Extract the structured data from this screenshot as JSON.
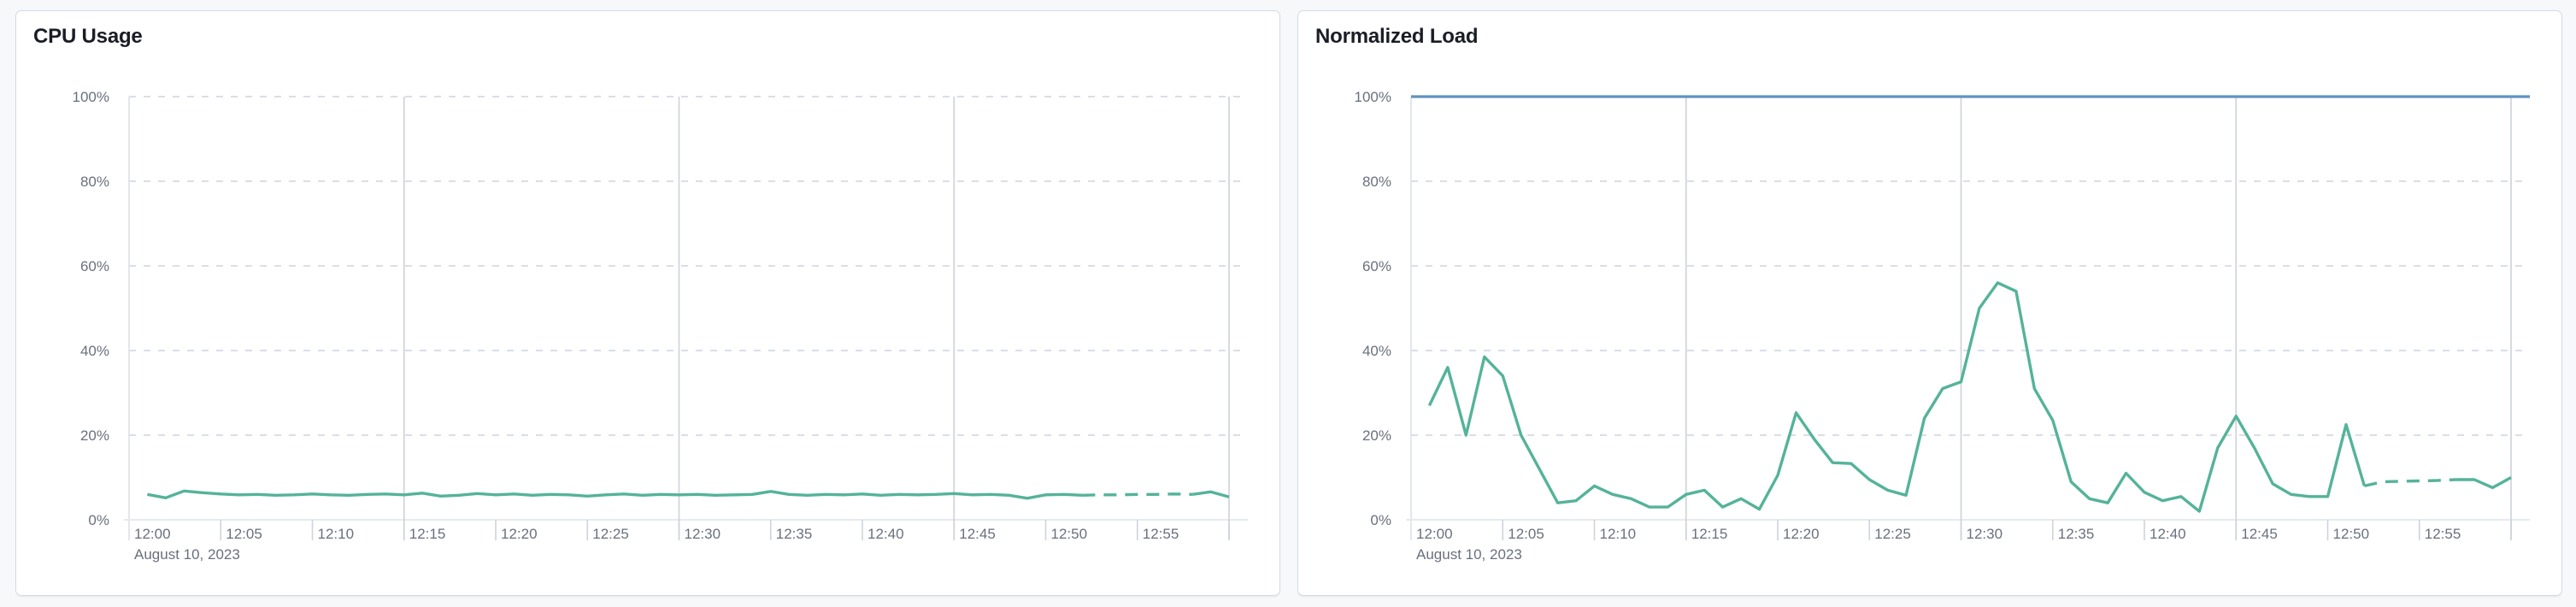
{
  "page": {
    "background": "#f7f8fa",
    "panel_border": "#d3dae6"
  },
  "chart_data": [
    {
      "type": "line",
      "title": "CPU Usage",
      "date_label": "August 10, 2023",
      "x_tick_labels": [
        "12:00",
        "12:05",
        "12:10",
        "12:15",
        "12:20",
        "12:25",
        "12:30",
        "12:35",
        "12:40",
        "12:45",
        "12:50",
        "12:55"
      ],
      "y_tick_labels": [
        "0%",
        "20%",
        "40%",
        "60%",
        "80%",
        "100%"
      ],
      "ylim": [
        0,
        100
      ],
      "x_domain_minutes": [
        0,
        60
      ],
      "grid": {
        "h_dashed_at_pct": [
          20,
          40,
          60,
          80,
          100
        ],
        "v_solid_at_minutes": [
          15,
          30,
          45,
          60
        ],
        "x_tick_every_minutes": 5
      },
      "legend": "none",
      "series": [
        {
          "name": "cpu-usage",
          "color": "#54b399",
          "start_minute": 1,
          "interval_minutes": 1,
          "dashed_minute_range": [
            52,
            58
          ],
          "values": [
            6.0,
            5.2,
            6.8,
            6.4,
            6.1,
            5.9,
            6.0,
            5.8,
            5.9,
            6.1,
            5.9,
            5.8,
            6.0,
            6.1,
            5.9,
            6.3,
            5.6,
            5.8,
            6.2,
            5.9,
            6.1,
            5.8,
            6.0,
            5.9,
            5.6,
            5.9,
            6.1,
            5.8,
            6.0,
            5.9,
            6.0,
            5.8,
            5.9,
            6.0,
            6.7,
            6.0,
            5.8,
            6.0,
            5.9,
            6.1,
            5.8,
            6.0,
            5.9,
            6.0,
            6.2,
            5.9,
            6.0,
            5.8,
            5.1,
            5.9,
            6.0,
            5.8,
            5.9,
            5.9,
            6.0,
            6.0,
            6.1,
            6.0,
            6.6,
            5.4
          ]
        }
      ]
    },
    {
      "type": "line",
      "title": "Normalized Load",
      "date_label": "August 10, 2023",
      "x_tick_labels": [
        "12:00",
        "12:05",
        "12:10",
        "12:15",
        "12:20",
        "12:25",
        "12:30",
        "12:35",
        "12:40",
        "12:45",
        "12:50",
        "12:55"
      ],
      "y_tick_labels": [
        "0%",
        "20%",
        "40%",
        "60%",
        "80%",
        "100%"
      ],
      "ylim": [
        0,
        100
      ],
      "x_domain_minutes": [
        0,
        60
      ],
      "grid": {
        "h_dashed_at_pct": [
          20,
          40,
          60,
          80,
          100
        ],
        "v_solid_at_minutes": [
          15,
          30,
          45,
          60
        ],
        "x_tick_every_minutes": 5
      },
      "legend": "none",
      "series": [
        {
          "name": "normalized-load",
          "color": "#54b399",
          "start_minute": 1,
          "interval_minutes": 1,
          "dashed_minute_range": [
            52,
            57
          ],
          "values": [
            27,
            36,
            20,
            38.5,
            34,
            20,
            12,
            4,
            4.5,
            8,
            6,
            5,
            3,
            3,
            6,
            7,
            3,
            5,
            2.5,
            10.5,
            25.3,
            19,
            13.5,
            13.3,
            9.5,
            7,
            5.8,
            24,
            31,
            32.6,
            50,
            56,
            54,
            31,
            23.5,
            9,
            5,
            4,
            11,
            6.5,
            4.5,
            5.5,
            2,
            17,
            24.5,
            17,
            8.5,
            6,
            5.5,
            5.5,
            22.5,
            8,
            9,
            9.1,
            9.2,
            9.3,
            9.5,
            9.5,
            7.6,
            10
          ]
        },
        {
          "name": "load-limit",
          "color": "#6092c0",
          "constant_value": 100
        }
      ]
    }
  ]
}
